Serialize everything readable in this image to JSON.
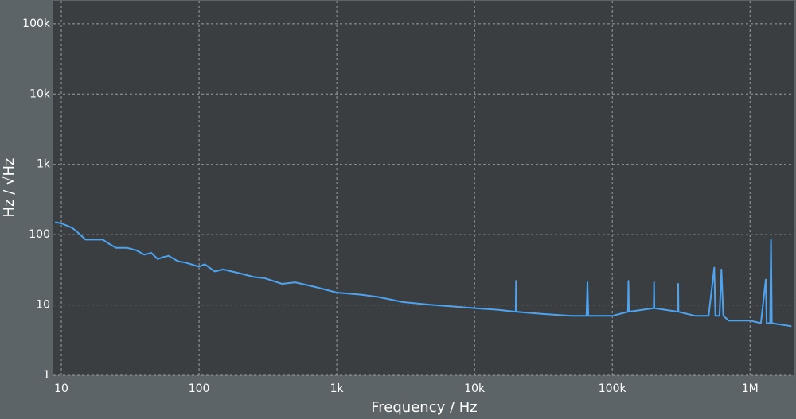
{
  "chart_data": {
    "type": "line",
    "x_label": "Frequency / Hz",
    "y_label": "Hz / √Hz",
    "xscale": "log",
    "yscale": "log",
    "grid": true,
    "color": "#4da3f0",
    "xlim": [
      8.75,
      2100000
    ],
    "ylim": [
      1,
      212000
    ],
    "xticks": [
      10,
      100,
      {
        "value": 1000,
        "label": "1k"
      },
      {
        "value": 10000,
        "label": "10k"
      },
      {
        "value": 100000,
        "label": "100k"
      },
      {
        "value": 1000000,
        "label": "1M"
      }
    ],
    "yticks": [
      1,
      10,
      100,
      {
        "value": 1000,
        "label": "1k"
      },
      {
        "value": 10000,
        "label": "10k"
      },
      {
        "value": 100000,
        "label": "100k"
      }
    ],
    "x": [
      9,
      10,
      12,
      13,
      15,
      20,
      22,
      25,
      30,
      35,
      40,
      45,
      50,
      55,
      60,
      70,
      80,
      100,
      110,
      130,
      150,
      200,
      250,
      300,
      400,
      500,
      700,
      1000,
      1500,
      2000,
      3000,
      5000,
      7000,
      10000,
      15000,
      19900,
      20000,
      20100,
      30000,
      50000,
      65000,
      66000,
      67000,
      100000,
      130000,
      131000,
      132000,
      200000,
      201000,
      202000,
      300000,
      301000,
      302000,
      400000,
      500000,
      550000,
      560000,
      600000,
      620000,
      640000,
      700000,
      1000000,
      1200000,
      1300000,
      1320000,
      1400000,
      1420000,
      1440000,
      2000000
    ],
    "values": [
      150,
      145,
      125,
      110,
      85,
      85,
      75,
      65,
      65,
      60,
      52,
      55,
      45,
      48,
      50,
      42,
      40,
      35,
      38,
      30,
      32,
      28,
      25,
      24,
      20,
      21,
      18,
      15,
      14,
      13,
      11,
      10,
      9.5,
      9,
      8.5,
      8,
      22,
      8,
      7.5,
      7,
      7,
      21,
      7,
      7,
      8,
      22,
      8,
      9,
      21,
      9,
      8,
      20,
      8,
      7,
      7,
      34,
      7,
      7,
      32,
      7,
      6,
      6,
      5.5,
      23,
      5.5,
      5.5,
      85,
      5.5,
      5
    ]
  }
}
